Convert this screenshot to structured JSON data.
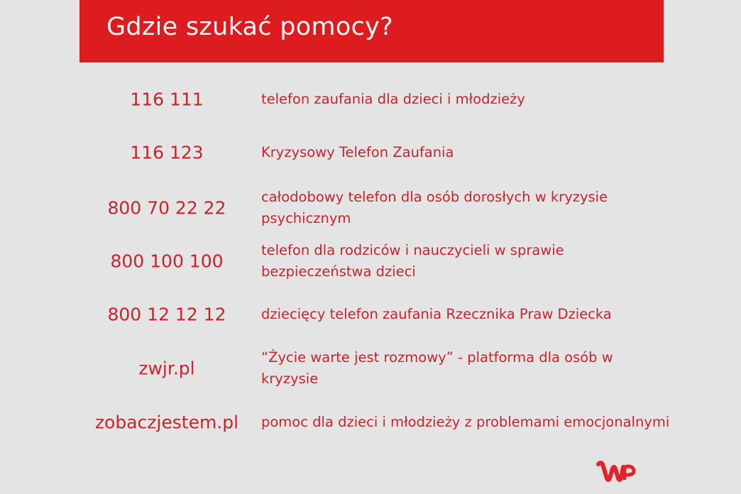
{
  "title": "Gdzie szukać pomocy?",
  "entries": [
    {
      "contact": "116 111",
      "description": "telefon zaufania dla dzieci i młodzieży"
    },
    {
      "contact": "116 123",
      "description": "Kryzysowy Telefon Zaufania"
    },
    {
      "contact": "800 70 22 22",
      "description": "całodobowy telefon dla osób dorosłych w kryzysie psychicznym"
    },
    {
      "contact": "800 100 100",
      "description": "telefon dla rodziców i nauczycieli w sprawie bezpieczeństwa dzieci"
    },
    {
      "contact": "800 12 12 12",
      "description": "dziecięcy telefon zaufania Rzecznika Praw Dziecka"
    },
    {
      "contact": "zwjr.pl",
      "description": "“Życie warte jest rozmowy” - platforma dla osób w kryzysie"
    },
    {
      "contact": "zobaczjestem.pl",
      "description": "pomoc dla dzieci i młodzieży z problemami emocjonalnymi"
    }
  ],
  "logo": {
    "text": "WP",
    "icon": "wp-logo-icon"
  },
  "colors": {
    "accent": "#dc1c1f",
    "text": "#c9232b",
    "background": "#e4e4e4"
  }
}
